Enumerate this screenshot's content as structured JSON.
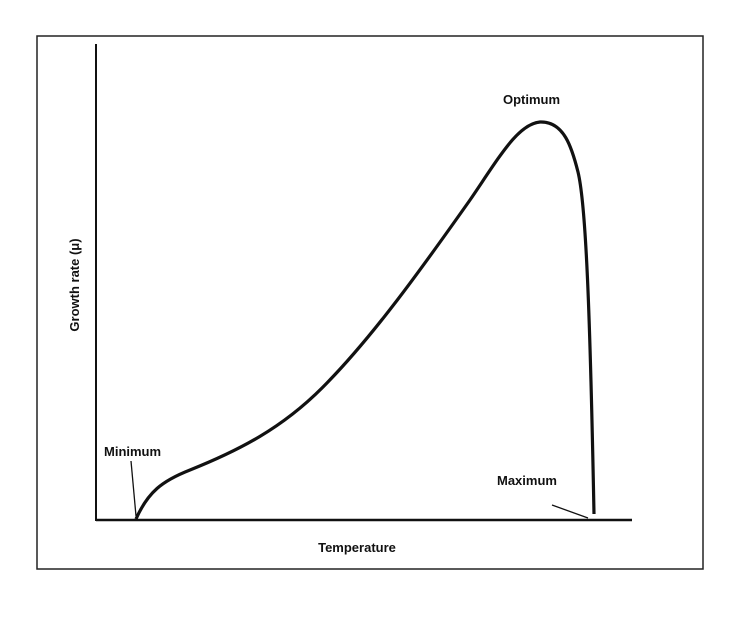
{
  "y_axis_label": "Growth rate (μ)",
  "x_axis_label": "Temperature",
  "annotations": {
    "minimum": "Minimum",
    "optimum": "Optimum",
    "maximum": "Maximum"
  }
}
